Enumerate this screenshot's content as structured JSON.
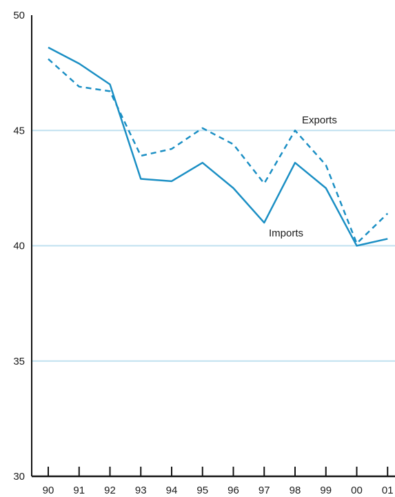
{
  "chart_data": {
    "type": "line",
    "title": "",
    "xlabel": "",
    "ylabel": "",
    "categories": [
      "90",
      "91",
      "92",
      "93",
      "94",
      "95",
      "96",
      "97",
      "98",
      "99",
      "00",
      "01"
    ],
    "ylim": [
      30,
      50
    ],
    "yticks": [
      "30",
      "35",
      "40",
      "45",
      "50"
    ],
    "grid": true,
    "series": [
      {
        "name": "Imports",
        "style": "solid",
        "color": "#1b8fc4",
        "values": [
          48.6,
          47.9,
          47.0,
          42.9,
          42.8,
          43.6,
          42.5,
          41.0,
          43.6,
          42.5,
          40.0,
          40.3
        ]
      },
      {
        "name": "Exports",
        "style": "dashed",
        "color": "#1b8fc4",
        "values": [
          48.1,
          46.9,
          46.7,
          43.9,
          44.2,
          45.1,
          44.4,
          42.7,
          45.0,
          43.5,
          40.1,
          41.4
        ]
      }
    ],
    "gridline_color": "#bfe0ef"
  }
}
